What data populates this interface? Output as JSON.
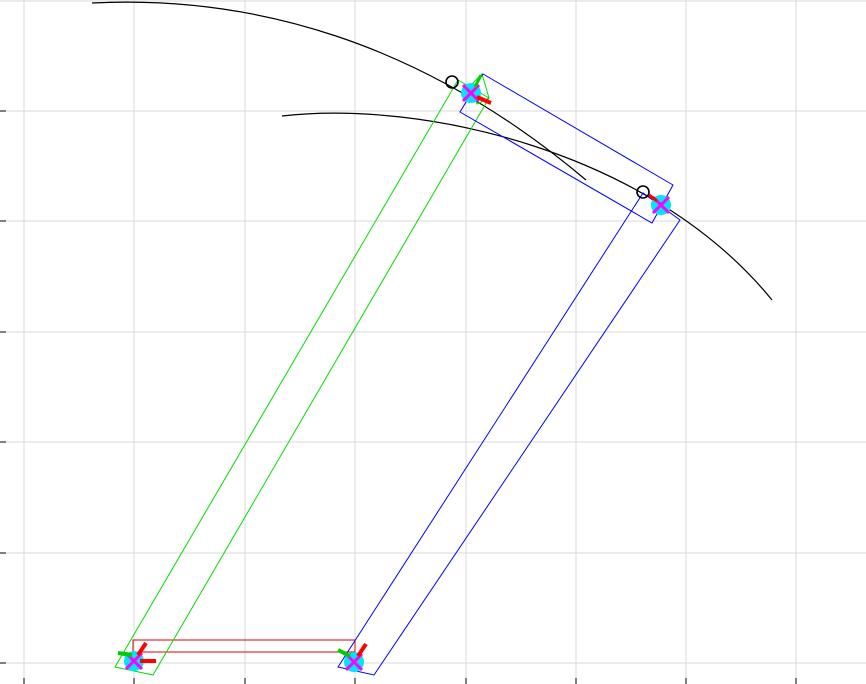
{
  "colors": {
    "background": "#ffffff",
    "grid": "#d9d9d9",
    "axis_tick": "#000000",
    "trajectory": "#000000",
    "link_a": "#00dd00",
    "link_b": "#0000ff",
    "base_link": "#dd0000",
    "joint_fill": "#00e5ff",
    "joint_cross": "#ff00ff",
    "frame_x": "#ff0000",
    "frame_y": "#00cc00",
    "target_marker": "#000000"
  },
  "plot": {
    "grid_visible": true,
    "x_tick_count": 8,
    "y_tick_count": 6
  },
  "icons": {
    "joint": "joint-marker-icon",
    "frame": "coordinate-frame-icon",
    "target": "target-circle-icon"
  }
}
